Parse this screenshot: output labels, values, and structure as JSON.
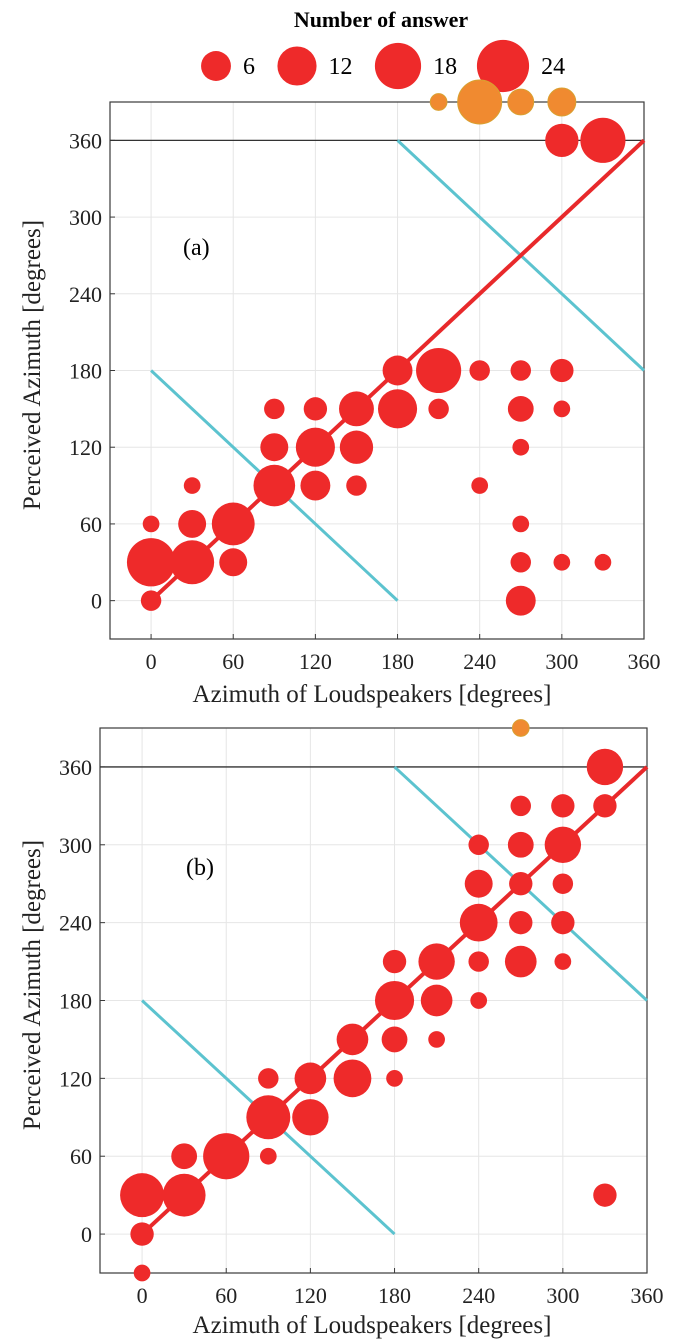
{
  "legend": {
    "title": "Number of answer",
    "entries": [
      {
        "label": "6",
        "size": 6
      },
      {
        "label": "12",
        "size": 12
      },
      {
        "label": "18",
        "size": 18
      },
      {
        "label": "24",
        "size": 24
      }
    ]
  },
  "colors": {
    "marker": "#ee2a2a",
    "wrapped_marker": "#f08a30",
    "diagonal": "#e8292b",
    "reference": "#5cc3cf",
    "frame": "#3a3a3a",
    "grid": "#e6e6e6"
  },
  "chart_data": [
    {
      "type": "scatter",
      "panel_label": "(a)",
      "xlabel": "Azimuth of Loudspeakers  [degrees]",
      "ylabel": "Perceived Azimuth [degrees]",
      "xlim": [
        -30,
        360
      ],
      "ylim": [
        -30,
        390
      ],
      "xticks": [
        0,
        60,
        120,
        180,
        240,
        300,
        360
      ],
      "yticks": [
        0,
        60,
        120,
        180,
        240,
        300,
        360
      ],
      "grid": true,
      "legend_position": "top",
      "reference_lines": {
        "diagonal": [
          [
            0,
            0
          ],
          [
            360,
            360
          ]
        ],
        "horizontal_at": 360,
        "front_back_mirrors": [
          [
            [
              0,
              180
            ],
            [
              180,
              0
            ]
          ],
          [
            [
              180,
              360
            ],
            [
              360,
              180
            ]
          ]
        ]
      },
      "points": [
        {
          "x": 0,
          "y": 0,
          "n": 2
        },
        {
          "x": 0,
          "y": 30,
          "n": 20
        },
        {
          "x": 0,
          "y": 60,
          "n": 1
        },
        {
          "x": 30,
          "y": 30,
          "n": 16
        },
        {
          "x": 30,
          "y": 60,
          "n": 5
        },
        {
          "x": 30,
          "y": 90,
          "n": 1
        },
        {
          "x": 60,
          "y": 30,
          "n": 5
        },
        {
          "x": 60,
          "y": 60,
          "n": 15
        },
        {
          "x": 90,
          "y": 90,
          "n": 14
        },
        {
          "x": 90,
          "y": 120,
          "n": 5
        },
        {
          "x": 90,
          "y": 150,
          "n": 2
        },
        {
          "x": 120,
          "y": 90,
          "n": 6
        },
        {
          "x": 120,
          "y": 120,
          "n": 12
        },
        {
          "x": 120,
          "y": 150,
          "n": 3
        },
        {
          "x": 150,
          "y": 90,
          "n": 2
        },
        {
          "x": 150,
          "y": 120,
          "n": 8
        },
        {
          "x": 150,
          "y": 150,
          "n": 9
        },
        {
          "x": 180,
          "y": 150,
          "n": 12
        },
        {
          "x": 180,
          "y": 180,
          "n": 6
        },
        {
          "x": 210,
          "y": 150,
          "n": 2
        },
        {
          "x": 210,
          "y": 180,
          "n": 17
        },
        {
          "x": 240,
          "y": 90,
          "n": 1
        },
        {
          "x": 240,
          "y": 180,
          "n": 2
        },
        {
          "x": 270,
          "y": 0,
          "n": 6
        },
        {
          "x": 270,
          "y": 30,
          "n": 2
        },
        {
          "x": 270,
          "y": 60,
          "n": 1
        },
        {
          "x": 270,
          "y": 120,
          "n": 1
        },
        {
          "x": 270,
          "y": 150,
          "n": 4
        },
        {
          "x": 270,
          "y": 180,
          "n": 2
        },
        {
          "x": 300,
          "y": 30,
          "n": 1
        },
        {
          "x": 300,
          "y": 150,
          "n": 1
        },
        {
          "x": 300,
          "y": 180,
          "n": 3
        },
        {
          "x": 300,
          "y": 360,
          "n": 8
        },
        {
          "x": 330,
          "y": 30,
          "n": 1
        },
        {
          "x": 330,
          "y": 360,
          "n": 17
        },
        {
          "x": 210,
          "y": 390,
          "n": 1,
          "wrapped": true
        },
        {
          "x": 240,
          "y": 390,
          "n": 16,
          "wrapped": true
        },
        {
          "x": 270,
          "y": 390,
          "n": 4,
          "wrapped": true
        },
        {
          "x": 300,
          "y": 390,
          "n": 5,
          "wrapped": true
        }
      ]
    },
    {
      "type": "scatter",
      "panel_label": "(b)",
      "xlabel": "Azimuth of Loudspeakers [degrees]",
      "ylabel": "Perceived Azimuth [degrees]",
      "xlim": [
        -30,
        360
      ],
      "ylim": [
        -30,
        390
      ],
      "xticks": [
        0,
        60,
        120,
        180,
        240,
        300,
        360
      ],
      "yticks": [
        0,
        60,
        120,
        180,
        240,
        300,
        360
      ],
      "grid": true,
      "reference_lines": {
        "diagonal": [
          [
            0,
            0
          ],
          [
            360,
            360
          ]
        ],
        "horizontal_at": 360,
        "front_back_mirrors": [
          [
            [
              0,
              180
            ],
            [
              180,
              0
            ]
          ],
          [
            [
              180,
              360
            ],
            [
              360,
              180
            ]
          ]
        ]
      },
      "points": [
        {
          "x": 0,
          "y": -30,
          "n": 1
        },
        {
          "x": 0,
          "y": 0,
          "n": 3
        },
        {
          "x": 0,
          "y": 30,
          "n": 16
        },
        {
          "x": 30,
          "y": 30,
          "n": 15
        },
        {
          "x": 30,
          "y": 60,
          "n": 4
        },
        {
          "x": 60,
          "y": 60,
          "n": 18
        },
        {
          "x": 90,
          "y": 60,
          "n": 1
        },
        {
          "x": 90,
          "y": 90,
          "n": 16
        },
        {
          "x": 90,
          "y": 120,
          "n": 2
        },
        {
          "x": 120,
          "y": 90,
          "n": 10
        },
        {
          "x": 120,
          "y": 120,
          "n": 7
        },
        {
          "x": 150,
          "y": 120,
          "n": 11
        },
        {
          "x": 150,
          "y": 150,
          "n": 7
        },
        {
          "x": 180,
          "y": 120,
          "n": 1
        },
        {
          "x": 180,
          "y": 150,
          "n": 4
        },
        {
          "x": 180,
          "y": 180,
          "n": 12
        },
        {
          "x": 180,
          "y": 210,
          "n": 3
        },
        {
          "x": 210,
          "y": 150,
          "n": 1
        },
        {
          "x": 210,
          "y": 180,
          "n": 7
        },
        {
          "x": 210,
          "y": 210,
          "n": 10
        },
        {
          "x": 240,
          "y": 180,
          "n": 1
        },
        {
          "x": 240,
          "y": 210,
          "n": 2
        },
        {
          "x": 240,
          "y": 240,
          "n": 11
        },
        {
          "x": 240,
          "y": 270,
          "n": 5
        },
        {
          "x": 240,
          "y": 300,
          "n": 2
        },
        {
          "x": 270,
          "y": 210,
          "n": 7
        },
        {
          "x": 270,
          "y": 240,
          "n": 3
        },
        {
          "x": 270,
          "y": 270,
          "n": 3
        },
        {
          "x": 270,
          "y": 300,
          "n": 4
        },
        {
          "x": 270,
          "y": 330,
          "n": 2
        },
        {
          "x": 300,
          "y": 210,
          "n": 1
        },
        {
          "x": 300,
          "y": 240,
          "n": 3
        },
        {
          "x": 300,
          "y": 270,
          "n": 2
        },
        {
          "x": 300,
          "y": 300,
          "n": 10
        },
        {
          "x": 300,
          "y": 330,
          "n": 3
        },
        {
          "x": 330,
          "y": 30,
          "n": 3
        },
        {
          "x": 330,
          "y": 330,
          "n": 3
        },
        {
          "x": 330,
          "y": 360,
          "n": 10
        },
        {
          "x": 270,
          "y": 390,
          "n": 1,
          "wrapped": true
        }
      ]
    }
  ]
}
